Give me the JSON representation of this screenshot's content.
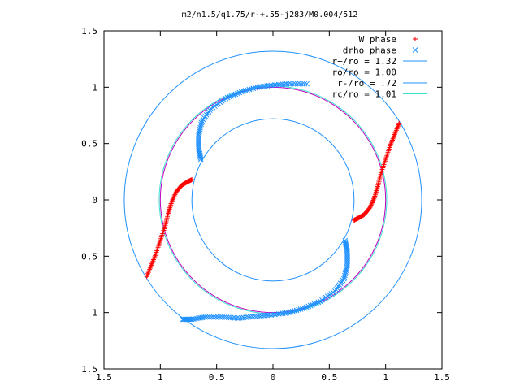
{
  "chart_data": {
    "type": "scatter",
    "title": "m2/n1.5/q1.75/r-+.55-j283/M0.004/512",
    "xlabel": "",
    "ylabel": "",
    "xlim": [
      -1.5,
      1.5
    ],
    "ylim": [
      -1.5,
      1.5
    ],
    "aspect": "equal",
    "grid": false,
    "legend_position": "top-right",
    "x_ticks": [
      -1.5,
      -1,
      -0.5,
      0,
      0.5,
      1,
      1.5
    ],
    "x_tick_labels": [
      "1.5",
      "1",
      "0.5",
      "0",
      "0.5",
      "1",
      "1.5"
    ],
    "y_ticks": [
      -1.5,
      -1,
      -0.5,
      0,
      0.5,
      1,
      1.5
    ],
    "y_tick_labels": [
      "1.5",
      "1",
      "0.5",
      "0",
      "0.5",
      "1",
      "1.5"
    ],
    "series": [
      {
        "name": "W phase",
        "marker": "+",
        "color": "#ff0000",
        "arms": [
          [
            [
              -1.12,
              -0.68
            ],
            [
              -1.08,
              -0.58
            ],
            [
              -1.04,
              -0.48
            ],
            [
              -1.0,
              -0.36
            ],
            [
              -0.96,
              -0.24
            ],
            [
              -0.93,
              -0.12
            ],
            [
              -0.9,
              -0.02
            ],
            [
              -0.86,
              0.07
            ],
            [
              -0.81,
              0.13
            ],
            [
              -0.76,
              0.16
            ],
            [
              -0.72,
              0.18
            ]
          ],
          [
            [
              1.12,
              0.68
            ],
            [
              1.08,
              0.58
            ],
            [
              1.04,
              0.48
            ],
            [
              1.0,
              0.36
            ],
            [
              0.96,
              0.24
            ],
            [
              0.93,
              0.12
            ],
            [
              0.9,
              0.02
            ],
            [
              0.86,
              -0.07
            ],
            [
              0.81,
              -0.13
            ],
            [
              0.76,
              -0.16
            ],
            [
              0.72,
              -0.18
            ]
          ]
        ]
      },
      {
        "name": "drho phase",
        "marker": "x",
        "color": "#1e90ff",
        "arms": [
          [
            [
              -0.64,
              0.36
            ],
            [
              -0.66,
              0.46
            ],
            [
              -0.66,
              0.58
            ],
            [
              -0.63,
              0.7
            ],
            [
              -0.55,
              0.81
            ],
            [
              -0.42,
              0.9
            ],
            [
              -0.28,
              0.96
            ],
            [
              -0.14,
              1.0
            ],
            [
              0.0,
              1.02
            ],
            [
              0.14,
              1.03
            ],
            [
              0.3,
              1.03
            ]
          ],
          [
            [
              0.64,
              -0.36
            ],
            [
              0.66,
              -0.46
            ],
            [
              0.66,
              -0.58
            ],
            [
              0.63,
              -0.7
            ],
            [
              0.55,
              -0.81
            ],
            [
              0.42,
              -0.9
            ],
            [
              0.28,
              -0.96
            ],
            [
              0.14,
              -1.0
            ],
            [
              0.0,
              -1.02
            ],
            [
              -0.14,
              -1.03
            ],
            [
              -0.3,
              -1.05
            ],
            [
              -0.45,
              -1.04
            ],
            [
              -0.6,
              -1.04
            ],
            [
              -0.72,
              -1.06
            ],
            [
              -0.8,
              -1.06
            ]
          ]
        ]
      },
      {
        "name": "r+/ro = 1.32",
        "kind": "circle",
        "radius": 1.32,
        "color": "#1e90ff"
      },
      {
        "name": "ro/ro = 1.00",
        "kind": "circle",
        "radius": 1.0,
        "color": "#c000c0"
      },
      {
        "name": "r-/ro = .72",
        "kind": "circle",
        "radius": 0.72,
        "color": "#1e90ff"
      },
      {
        "name": "rc/ro = 1.01",
        "kind": "circle",
        "radius": 1.01,
        "color": "#40e0d0"
      }
    ]
  }
}
